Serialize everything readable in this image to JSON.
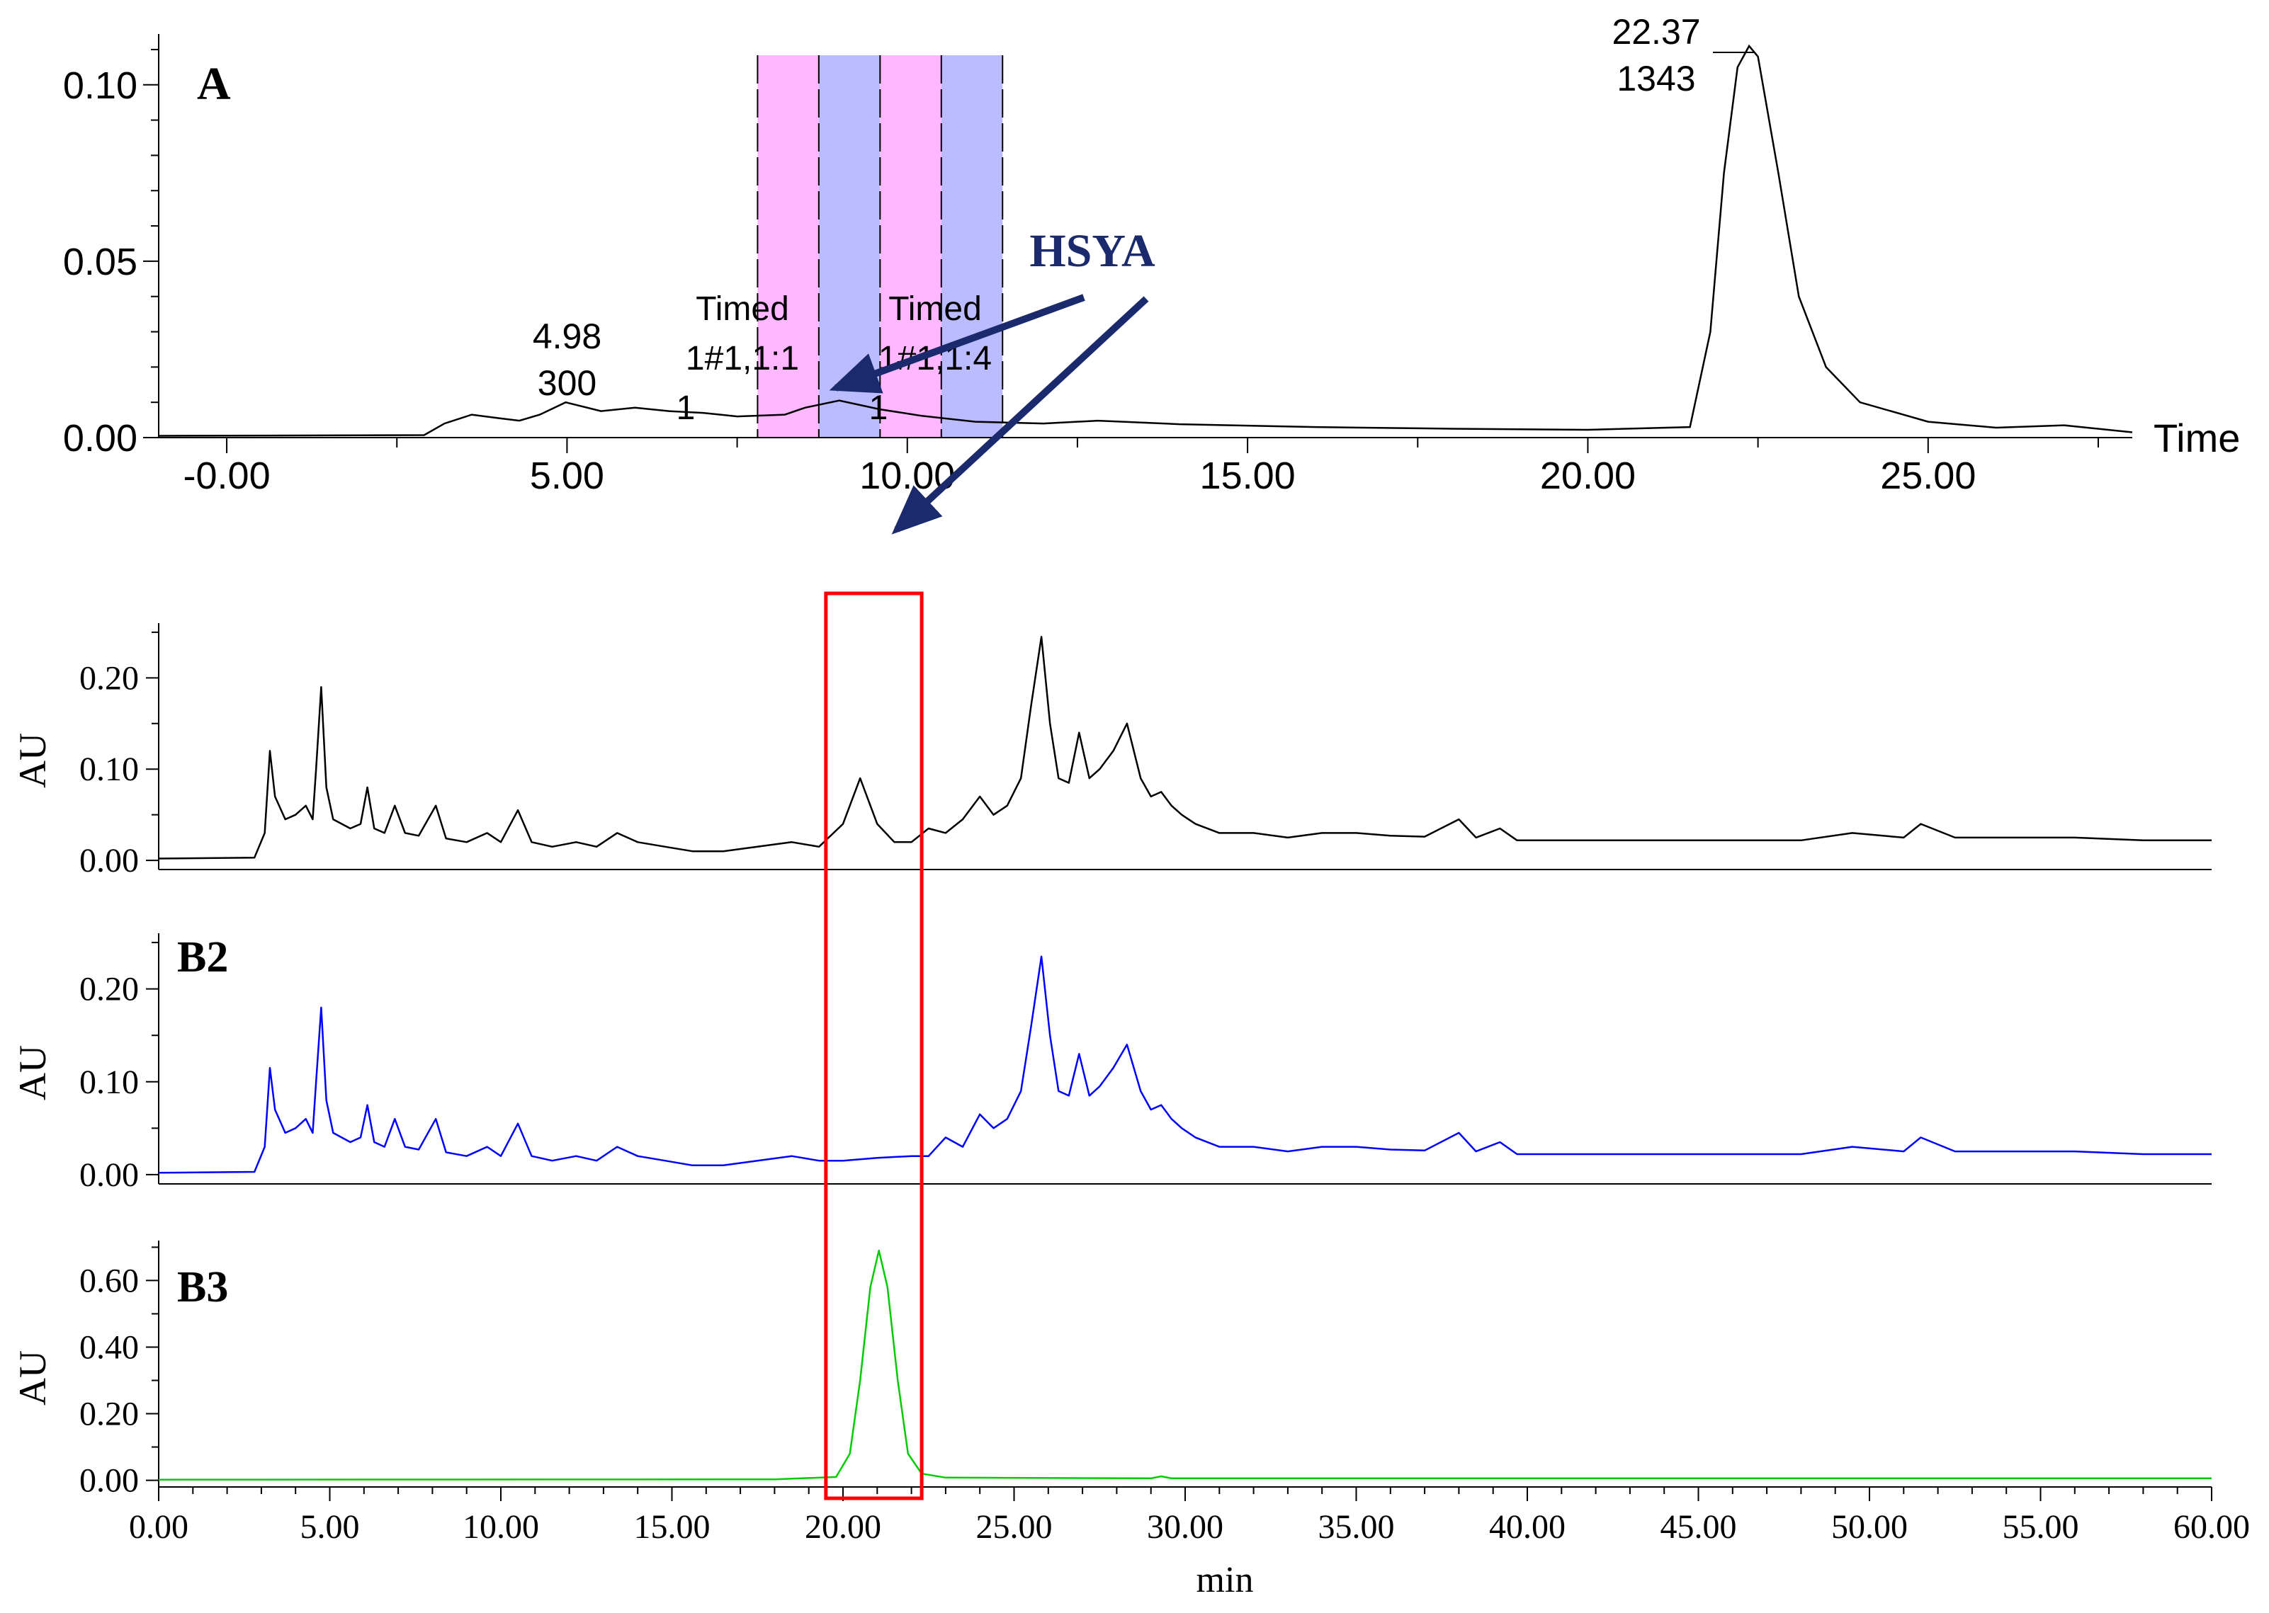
{
  "chart_data": [
    {
      "type": "line",
      "panel_label": "A",
      "xlabel": "Time",
      "ylabel": "",
      "xlim": [
        -1,
        28
      ],
      "ylim": [
        0,
        0.112
      ],
      "x_ticks": [
        0,
        5,
        10,
        15,
        20,
        25
      ],
      "x_tick_labels": [
        "-0.00",
        "5.00",
        "10.00",
        "15.00",
        "20.00",
        "25.00"
      ],
      "y_ticks": [
        0,
        0.05,
        0.1
      ],
      "y_tick_labels": [
        "0.00",
        "0.05",
        "0.10"
      ],
      "series": [
        {
          "color": "#000000",
          "x": [
            -1,
            2.9,
            3.2,
            3.6,
            4.0,
            4.3,
            4.6,
            4.98,
            5.5,
            6.0,
            6.5,
            7.0,
            7.5,
            8.2,
            8.5,
            9.0,
            9.6,
            10.2,
            11.0,
            12.0,
            12.8,
            14.0,
            16.0,
            18.0,
            20.0,
            21.5,
            21.8,
            22.0,
            22.2,
            22.37,
            22.5,
            22.8,
            23.1,
            23.5,
            24.0,
            25.0,
            26.0,
            27.0,
            28.0
          ],
          "y": [
            0.0005,
            0.0007,
            0.004,
            0.0065,
            0.0055,
            0.0048,
            0.0065,
            0.01,
            0.0075,
            0.0085,
            0.0075,
            0.007,
            0.006,
            0.0065,
            0.0085,
            0.0105,
            0.008,
            0.0062,
            0.0045,
            0.004,
            0.0048,
            0.0038,
            0.003,
            0.0025,
            0.0022,
            0.003,
            0.03,
            0.075,
            0.105,
            0.111,
            0.108,
            0.075,
            0.04,
            0.02,
            0.01,
            0.0045,
            0.0028,
            0.0035,
            0.0015
          ]
        }
      ],
      "peak_labels": [
        {
          "x": 4.98,
          "y": 0.01,
          "lines": [
            "4.98",
            "300"
          ]
        },
        {
          "x": 22.37,
          "y": 0.111,
          "lines": [
            "22.37",
            "1343"
          ]
        }
      ],
      "fraction_bands": [
        {
          "x0": 7.8,
          "x1": 8.7,
          "color": "#ffb7ff"
        },
        {
          "x0": 8.7,
          "x1": 9.6,
          "color": "#bbbbff"
        },
        {
          "x0": 9.6,
          "x1": 10.5,
          "color": "#ffb7ff"
        },
        {
          "x0": 10.5,
          "x1": 11.4,
          "color": "#bbbbff"
        }
      ],
      "band_labels": [
        {
          "x": 8.15,
          "lines": [
            "Timed",
            "1#1,1:1",
            "1"
          ]
        },
        {
          "x": 10.85,
          "lines": [
            "Timed",
            "1#1,1:4",
            "1"
          ]
        }
      ],
      "annotation": "HSYA"
    },
    {
      "type": "line",
      "panel_label": "",
      "xlabel": "",
      "ylabel": "AU",
      "xlim": [
        0,
        60
      ],
      "ylim": [
        -0.01,
        0.26
      ],
      "y_ticks": [
        0,
        0.1,
        0.2
      ],
      "y_tick_labels": [
        "0.00",
        "0.10",
        "0.20"
      ],
      "series": [
        {
          "color": "#000000",
          "x": [
            0,
            2.8,
            3.1,
            3.25,
            3.4,
            3.7,
            4.0,
            4.3,
            4.5,
            4.6,
            4.75,
            4.9,
            5.1,
            5.6,
            5.9,
            6.1,
            6.3,
            6.6,
            6.9,
            7.2,
            7.6,
            8.1,
            8.4,
            9.0,
            9.6,
            10.0,
            10.5,
            10.9,
            11.5,
            12.2,
            12.8,
            13.4,
            14.0,
            14.8,
            15.6,
            16.5,
            17.5,
            18.5,
            19.3,
            20.0,
            20.5,
            21.0,
            21.5,
            22.0,
            22.5,
            23.0,
            23.5,
            24.0,
            24.4,
            24.8,
            25.2,
            25.5,
            25.8,
            26.05,
            26.3,
            26.6,
            26.9,
            27.2,
            27.5,
            27.9,
            28.3,
            28.7,
            29.0,
            29.3,
            29.6,
            29.9,
            30.3,
            31.0,
            32.0,
            33.0,
            34.0,
            35.0,
            36.0,
            37.0,
            38.0,
            38.5,
            39.2,
            39.7,
            40.5,
            41.5,
            43.0,
            45.0,
            48.0,
            49.5,
            51.0,
            51.5,
            52.5,
            54.0,
            56.0,
            58.0,
            60.0
          ],
          "y": [
            0.002,
            0.003,
            0.03,
            0.12,
            0.07,
            0.045,
            0.05,
            0.06,
            0.045,
            0.1,
            0.19,
            0.08,
            0.045,
            0.035,
            0.04,
            0.08,
            0.035,
            0.03,
            0.06,
            0.03,
            0.027,
            0.06,
            0.024,
            0.02,
            0.03,
            0.02,
            0.055,
            0.02,
            0.015,
            0.02,
            0.015,
            0.03,
            0.02,
            0.015,
            0.01,
            0.01,
            0.015,
            0.02,
            0.015,
            0.04,
            0.09,
            0.04,
            0.02,
            0.02,
            0.035,
            0.03,
            0.045,
            0.07,
            0.05,
            0.06,
            0.09,
            0.17,
            0.245,
            0.15,
            0.09,
            0.085,
            0.14,
            0.09,
            0.1,
            0.12,
            0.15,
            0.09,
            0.07,
            0.075,
            0.06,
            0.05,
            0.04,
            0.03,
            0.03,
            0.025,
            0.03,
            0.03,
            0.027,
            0.026,
            0.045,
            0.025,
            0.035,
            0.022,
            0.022,
            0.022,
            0.022,
            0.022,
            0.022,
            0.03,
            0.025,
            0.04,
            0.025,
            0.025,
            0.025,
            0.022,
            0.022
          ]
        }
      ]
    },
    {
      "type": "line",
      "panel_label": "B2",
      "xlabel": "",
      "ylabel": "AU",
      "xlim": [
        0,
        60
      ],
      "ylim": [
        -0.01,
        0.26
      ],
      "y_ticks": [
        0,
        0.1,
        0.2
      ],
      "y_tick_labels": [
        "0.00",
        "0.10",
        "0.20"
      ],
      "series": [
        {
          "color": "#0000ff",
          "x": [
            0,
            2.8,
            3.1,
            3.25,
            3.4,
            3.7,
            4.0,
            4.3,
            4.5,
            4.6,
            4.75,
            4.9,
            5.1,
            5.6,
            5.9,
            6.1,
            6.3,
            6.6,
            6.9,
            7.2,
            7.6,
            8.1,
            8.4,
            9.0,
            9.6,
            10.0,
            10.5,
            10.9,
            11.5,
            12.2,
            12.8,
            13.4,
            14.0,
            14.8,
            15.6,
            16.5,
            17.5,
            18.5,
            19.3,
            20.0,
            21.0,
            22.0,
            22.5,
            23.0,
            23.5,
            24.0,
            24.4,
            24.8,
            25.2,
            25.5,
            25.8,
            26.05,
            26.3,
            26.6,
            26.9,
            27.2,
            27.5,
            27.9,
            28.3,
            28.7,
            29.0,
            29.3,
            29.6,
            29.9,
            30.3,
            31.0,
            32.0,
            33.0,
            34.0,
            35.0,
            36.0,
            37.0,
            38.0,
            38.5,
            39.2,
            39.7,
            40.5,
            41.5,
            43.0,
            45.0,
            48.0,
            49.5,
            51.0,
            51.5,
            52.5,
            54.0,
            56.0,
            58.0,
            60.0
          ],
          "y": [
            0.002,
            0.003,
            0.03,
            0.115,
            0.07,
            0.045,
            0.05,
            0.06,
            0.045,
            0.1,
            0.18,
            0.08,
            0.045,
            0.035,
            0.04,
            0.075,
            0.035,
            0.03,
            0.06,
            0.03,
            0.027,
            0.06,
            0.024,
            0.02,
            0.03,
            0.02,
            0.055,
            0.02,
            0.015,
            0.02,
            0.015,
            0.03,
            0.02,
            0.015,
            0.01,
            0.01,
            0.015,
            0.02,
            0.015,
            0.015,
            0.018,
            0.02,
            0.02,
            0.04,
            0.03,
            0.065,
            0.05,
            0.06,
            0.09,
            0.16,
            0.235,
            0.15,
            0.09,
            0.085,
            0.13,
            0.085,
            0.095,
            0.115,
            0.14,
            0.09,
            0.07,
            0.075,
            0.06,
            0.05,
            0.04,
            0.03,
            0.03,
            0.025,
            0.03,
            0.03,
            0.027,
            0.026,
            0.045,
            0.025,
            0.035,
            0.022,
            0.022,
            0.022,
            0.022,
            0.022,
            0.022,
            0.03,
            0.025,
            0.04,
            0.025,
            0.025,
            0.025,
            0.022,
            0.022
          ]
        }
      ]
    },
    {
      "type": "line",
      "panel_label": "B3",
      "xlabel": "min",
      "ylabel": "AU",
      "xlim": [
        0,
        60
      ],
      "ylim": [
        -0.02,
        0.72
      ],
      "x_ticks": [
        0,
        5,
        10,
        15,
        20,
        25,
        30,
        35,
        40,
        45,
        50,
        55,
        60
      ],
      "x_tick_labels": [
        "0.00",
        "5.00",
        "10.00",
        "15.00",
        "20.00",
        "25.00",
        "30.00",
        "35.00",
        "40.00",
        "45.00",
        "50.00",
        "55.00",
        "60.00"
      ],
      "y_ticks": [
        0,
        0.2,
        0.4,
        0.6
      ],
      "y_tick_labels": [
        "0.00",
        "0.20",
        "0.40",
        "0.60"
      ],
      "series": [
        {
          "color": "#00cc00",
          "x": [
            0,
            18.0,
            19.8,
            20.2,
            20.5,
            20.8,
            21.05,
            21.3,
            21.6,
            21.9,
            22.3,
            23.0,
            29.0,
            29.3,
            29.6,
            40.0,
            50.0,
            60.0
          ],
          "y": [
            0.002,
            0.003,
            0.01,
            0.08,
            0.3,
            0.58,
            0.69,
            0.58,
            0.3,
            0.08,
            0.02,
            0.008,
            0.006,
            0.012,
            0.006,
            0.006,
            0.006,
            0.006
          ]
        }
      ]
    }
  ],
  "highlight": {
    "x0": 19.5,
    "x1": 22.3,
    "color": "#ff0000"
  }
}
